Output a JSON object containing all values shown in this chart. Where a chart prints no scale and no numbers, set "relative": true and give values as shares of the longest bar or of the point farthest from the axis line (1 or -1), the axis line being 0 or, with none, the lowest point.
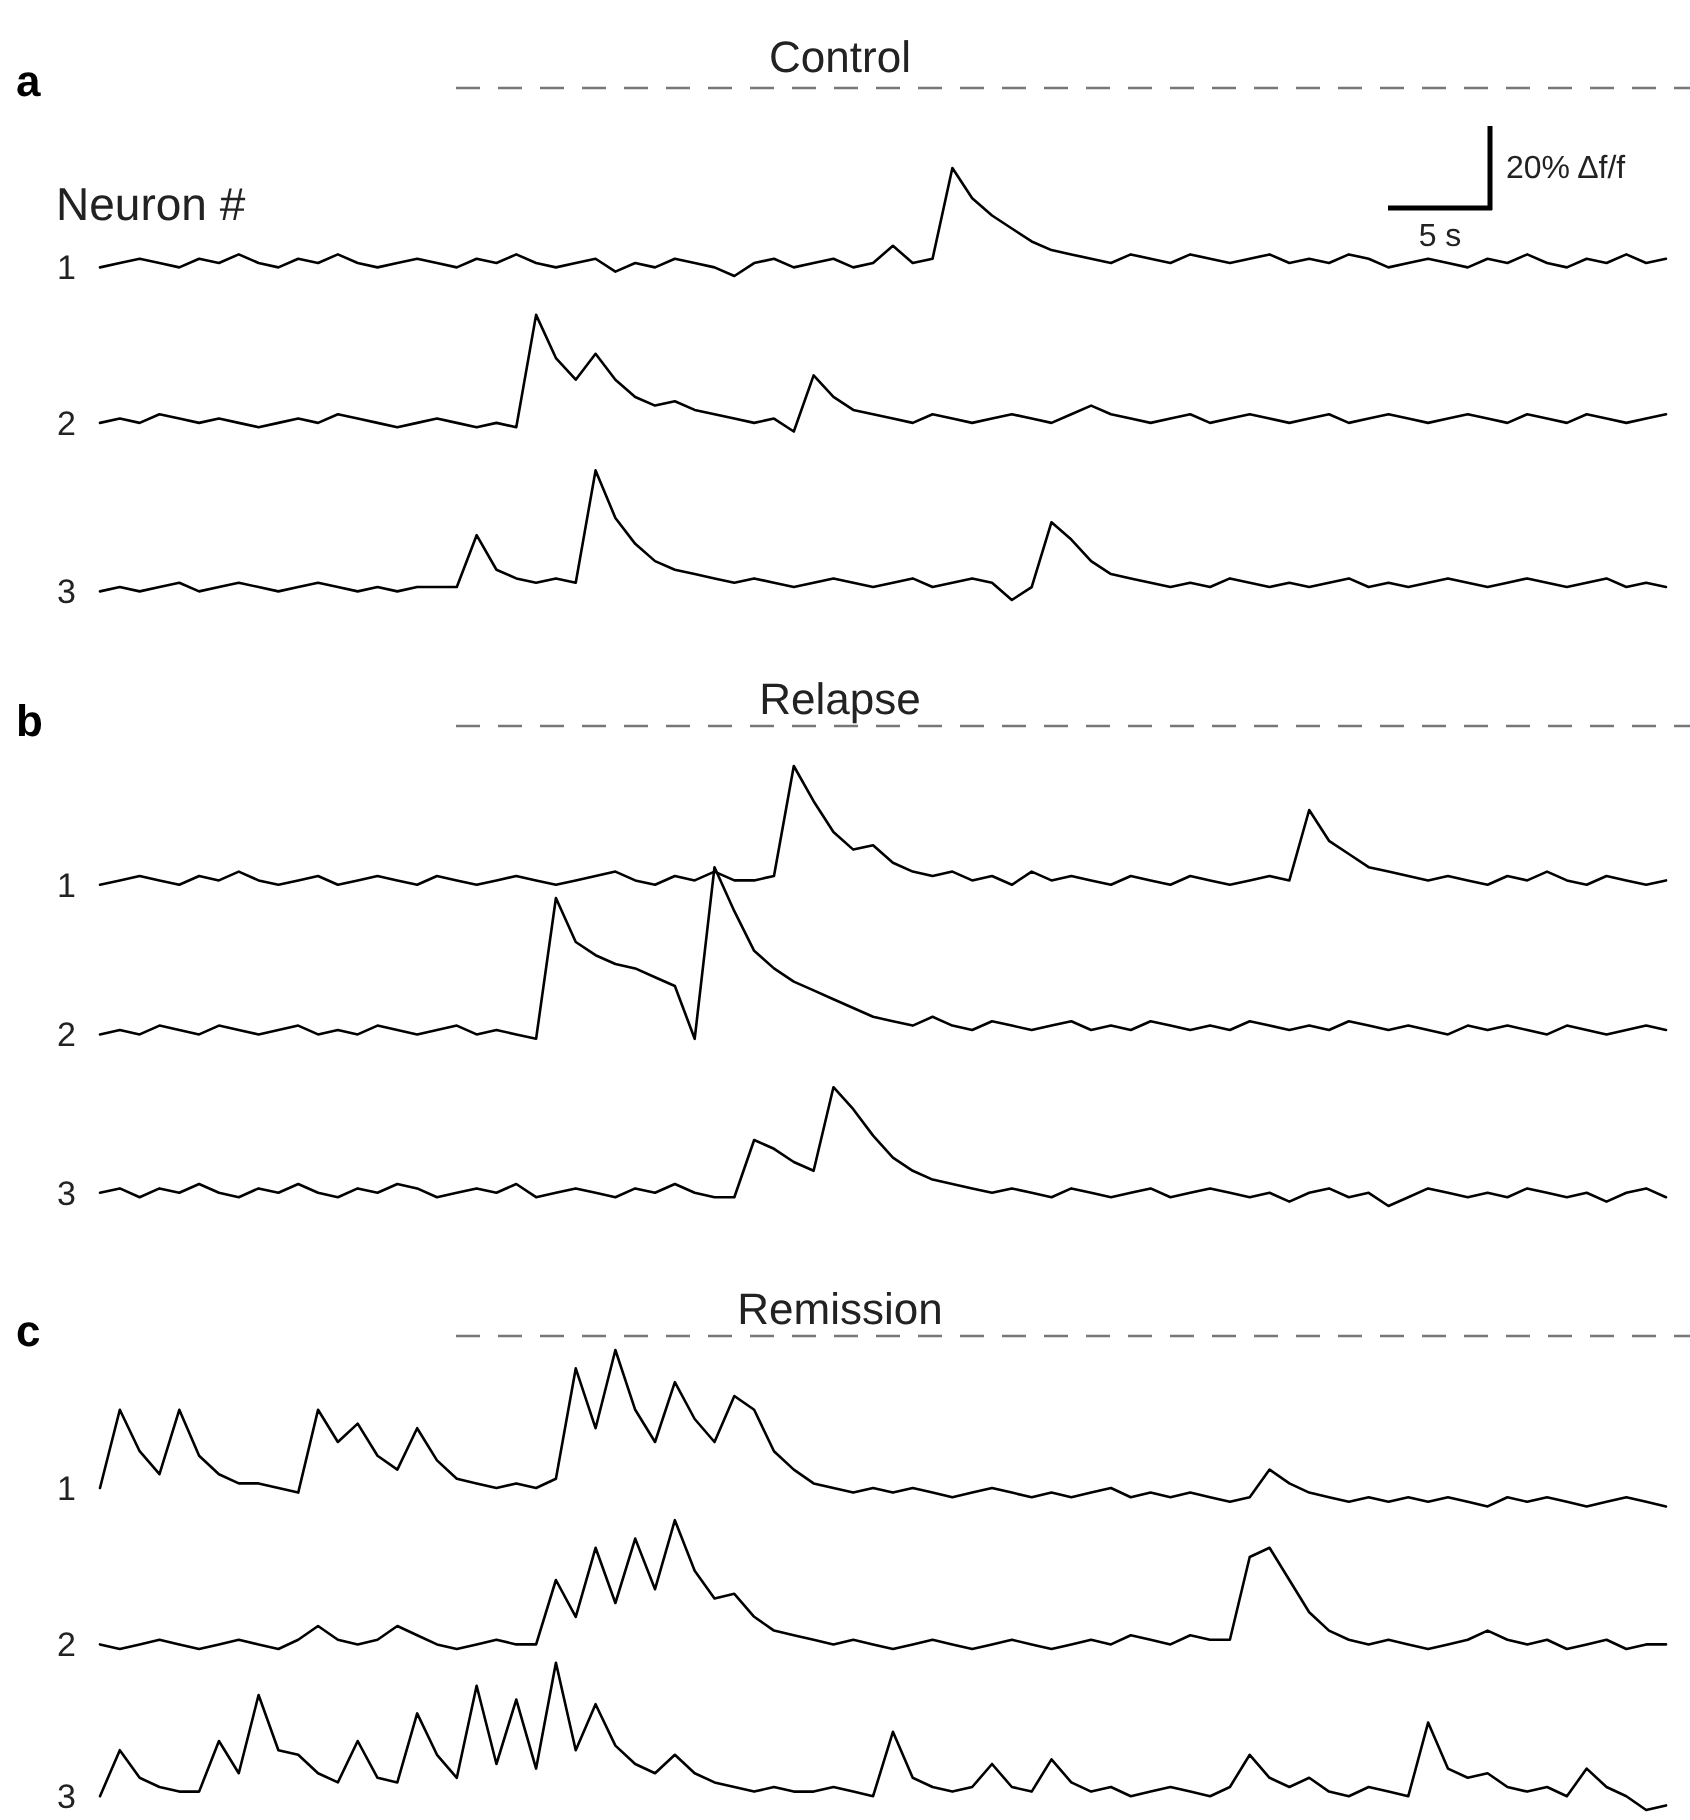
{
  "chart_data": [
    {
      "type": "line",
      "title": "Control",
      "relative": true,
      "legend": false,
      "annotations": [
        "a",
        "Neuron #",
        "20% Δf/f",
        "5 s"
      ],
      "categories": [
        null,
        null,
        null,
        null,
        null,
        null,
        null,
        null,
        null,
        null,
        null,
        null,
        null,
        null,
        null,
        null,
        null,
        null,
        null,
        null,
        null,
        null,
        null,
        null,
        null,
        null,
        null,
        null,
        null,
        null,
        null,
        null,
        null,
        null,
        null,
        null,
        null,
        null,
        null,
        null,
        null,
        null,
        null,
        null,
        null,
        null,
        null,
        null,
        null,
        null,
        null,
        null,
        null,
        null,
        null,
        null,
        null,
        null,
        null,
        null,
        null,
        null,
        null,
        null,
        null,
        null,
        null,
        null,
        null,
        null,
        null,
        null,
        null,
        null,
        null,
        null,
        null,
        null,
        null,
        null
      ],
      "series": [
        {
          "name": "1",
          "color": "#000000",
          "values": [
            0.77,
            0.78,
            0.79,
            0.78,
            0.77,
            0.79,
            0.78,
            0.8,
            0.78,
            0.77,
            0.79,
            0.78,
            0.8,
            0.78,
            0.77,
            0.78,
            0.79,
            0.78,
            0.77,
            0.79,
            0.78,
            0.8,
            0.78,
            0.77,
            0.78,
            0.79,
            0.76,
            0.78,
            0.77,
            0.79,
            0.78,
            0.77,
            0.75,
            0.78,
            0.79,
            0.77,
            0.78,
            0.79,
            0.77,
            0.78,
            0.82,
            0.78,
            0.79,
            1.0,
            0.93,
            0.89,
            0.86,
            0.83,
            0.81,
            0.8,
            0.79,
            0.78,
            0.8,
            0.79,
            0.78,
            0.8,
            0.79,
            0.78,
            0.79,
            0.8,
            0.78,
            0.79,
            0.78,
            0.8,
            0.79,
            0.77,
            0.78,
            0.79,
            0.78,
            0.77,
            0.79,
            0.78,
            0.8,
            0.78,
            0.77,
            0.79,
            0.78,
            0.8,
            0.78,
            0.79
          ]
        },
        {
          "name": "2",
          "color": "#000000",
          "values": [
            0.41,
            0.42,
            0.41,
            0.43,
            0.42,
            0.41,
            0.42,
            0.41,
            0.4,
            0.41,
            0.42,
            0.41,
            0.43,
            0.42,
            0.41,
            0.4,
            0.41,
            0.42,
            0.41,
            0.4,
            0.41,
            0.4,
            0.66,
            0.56,
            0.51,
            0.57,
            0.51,
            0.47,
            0.45,
            0.46,
            0.44,
            0.43,
            0.42,
            0.41,
            0.42,
            0.39,
            0.52,
            0.47,
            0.44,
            0.43,
            0.42,
            0.41,
            0.43,
            0.42,
            0.41,
            0.42,
            0.43,
            0.42,
            0.41,
            0.43,
            0.45,
            0.43,
            0.42,
            0.41,
            0.42,
            0.43,
            0.41,
            0.42,
            0.43,
            0.42,
            0.41,
            0.42,
            0.43,
            0.41,
            0.42,
            0.43,
            0.42,
            0.41,
            0.42,
            0.43,
            0.42,
            0.41,
            0.43,
            0.42,
            0.41,
            0.43,
            0.42,
            0.41,
            0.42,
            0.43
          ]
        },
        {
          "name": "3",
          "color": "#000000",
          "values": [
            0.02,
            0.03,
            0.02,
            0.03,
            0.04,
            0.02,
            0.03,
            0.04,
            0.03,
            0.02,
            0.03,
            0.04,
            0.03,
            0.02,
            0.03,
            0.02,
            0.03,
            0.03,
            0.03,
            0.15,
            0.07,
            0.05,
            0.04,
            0.05,
            0.04,
            0.3,
            0.19,
            0.13,
            0.09,
            0.07,
            0.06,
            0.05,
            0.04,
            0.05,
            0.04,
            0.03,
            0.04,
            0.05,
            0.04,
            0.03,
            0.04,
            0.05,
            0.03,
            0.04,
            0.05,
            0.04,
            0.0,
            0.03,
            0.18,
            0.14,
            0.09,
            0.06,
            0.05,
            0.04,
            0.03,
            0.04,
            0.03,
            0.05,
            0.04,
            0.03,
            0.04,
            0.03,
            0.04,
            0.05,
            0.03,
            0.04,
            0.03,
            0.04,
            0.05,
            0.04,
            0.03,
            0.04,
            0.05,
            0.04,
            0.03,
            0.04,
            0.05,
            0.03,
            0.04,
            0.03
          ]
        }
      ]
    },
    {
      "type": "line",
      "title": "Relapse",
      "relative": true,
      "legend": false,
      "annotations": [
        "b"
      ],
      "categories": [
        null,
        null,
        null,
        null,
        null,
        null,
        null,
        null,
        null,
        null,
        null,
        null,
        null,
        null,
        null,
        null,
        null,
        null,
        null,
        null,
        null,
        null,
        null,
        null,
        null,
        null,
        null,
        null,
        null,
        null,
        null,
        null,
        null,
        null,
        null,
        null,
        null,
        null,
        null,
        null,
        null,
        null,
        null,
        null,
        null,
        null,
        null,
        null,
        null,
        null,
        null,
        null,
        null,
        null,
        null,
        null,
        null,
        null,
        null,
        null,
        null,
        null,
        null,
        null,
        null,
        null,
        null,
        null,
        null,
        null,
        null,
        null,
        null,
        null,
        null,
        null,
        null,
        null,
        null,
        null
      ],
      "series": [
        {
          "name": "1",
          "color": "#000000",
          "values": [
            0.73,
            0.74,
            0.75,
            0.74,
            0.73,
            0.75,
            0.74,
            0.76,
            0.74,
            0.73,
            0.74,
            0.75,
            0.73,
            0.74,
            0.75,
            0.74,
            0.73,
            0.75,
            0.74,
            0.73,
            0.74,
            0.75,
            0.74,
            0.73,
            0.74,
            0.75,
            0.76,
            0.74,
            0.73,
            0.75,
            0.74,
            0.76,
            0.74,
            0.74,
            0.75,
            1.0,
            0.92,
            0.85,
            0.81,
            0.82,
            0.78,
            0.76,
            0.75,
            0.76,
            0.74,
            0.75,
            0.73,
            0.76,
            0.74,
            0.75,
            0.74,
            0.73,
            0.75,
            0.74,
            0.73,
            0.75,
            0.74,
            0.73,
            0.74,
            0.75,
            0.74,
            0.9,
            0.83,
            0.8,
            0.77,
            0.76,
            0.75,
            0.74,
            0.75,
            0.74,
            0.73,
            0.75,
            0.74,
            0.76,
            0.74,
            0.73,
            0.75,
            0.74,
            0.73,
            0.74
          ]
        },
        {
          "name": "2",
          "color": "#000000",
          "values": [
            0.39,
            0.4,
            0.39,
            0.41,
            0.4,
            0.39,
            0.41,
            0.4,
            0.39,
            0.4,
            0.41,
            0.39,
            0.4,
            0.39,
            0.41,
            0.4,
            0.39,
            0.4,
            0.41,
            0.39,
            0.4,
            0.39,
            0.38,
            0.7,
            0.6,
            0.57,
            0.55,
            0.54,
            0.52,
            0.5,
            0.38,
            0.77,
            0.67,
            0.58,
            0.54,
            0.51,
            0.49,
            0.47,
            0.45,
            0.43,
            0.42,
            0.41,
            0.43,
            0.41,
            0.4,
            0.42,
            0.41,
            0.4,
            0.41,
            0.42,
            0.4,
            0.41,
            0.4,
            0.42,
            0.41,
            0.4,
            0.41,
            0.4,
            0.42,
            0.41,
            0.4,
            0.41,
            0.4,
            0.42,
            0.41,
            0.4,
            0.41,
            0.4,
            0.39,
            0.41,
            0.4,
            0.41,
            0.4,
            0.39,
            0.41,
            0.4,
            0.39,
            0.4,
            0.41,
            0.4
          ]
        },
        {
          "name": "3",
          "color": "#000000",
          "values": [
            0.03,
            0.04,
            0.02,
            0.04,
            0.03,
            0.05,
            0.03,
            0.02,
            0.04,
            0.03,
            0.05,
            0.03,
            0.02,
            0.04,
            0.03,
            0.05,
            0.04,
            0.02,
            0.03,
            0.04,
            0.03,
            0.05,
            0.02,
            0.03,
            0.04,
            0.03,
            0.02,
            0.04,
            0.03,
            0.05,
            0.03,
            0.02,
            0.02,
            0.15,
            0.13,
            0.1,
            0.08,
            0.27,
            0.22,
            0.16,
            0.11,
            0.08,
            0.06,
            0.05,
            0.04,
            0.03,
            0.04,
            0.03,
            0.02,
            0.04,
            0.03,
            0.02,
            0.03,
            0.04,
            0.02,
            0.03,
            0.04,
            0.03,
            0.02,
            0.03,
            0.01,
            0.03,
            0.04,
            0.02,
            0.03,
            0.0,
            0.02,
            0.04,
            0.03,
            0.02,
            0.03,
            0.02,
            0.04,
            0.03,
            0.02,
            0.03,
            0.01,
            0.03,
            0.04,
            0.02
          ]
        }
      ]
    },
    {
      "type": "line",
      "title": "Remission",
      "relative": true,
      "legend": false,
      "annotations": [
        "c"
      ],
      "categories": [
        null,
        null,
        null,
        null,
        null,
        null,
        null,
        null,
        null,
        null,
        null,
        null,
        null,
        null,
        null,
        null,
        null,
        null,
        null,
        null,
        null,
        null,
        null,
        null,
        null,
        null,
        null,
        null,
        null,
        null,
        null,
        null,
        null,
        null,
        null,
        null,
        null,
        null,
        null,
        null,
        null,
        null,
        null,
        null,
        null,
        null,
        null,
        null,
        null,
        null,
        null,
        null,
        null,
        null,
        null,
        null,
        null,
        null,
        null,
        null,
        null,
        null,
        null,
        null,
        null,
        null,
        null,
        null,
        null,
        null,
        null,
        null,
        null,
        null,
        null,
        null,
        null,
        null,
        null,
        null
      ],
      "series": [
        {
          "name": "1",
          "color": "#000000",
          "values": [
            0.7,
            0.87,
            0.78,
            0.73,
            0.87,
            0.77,
            0.73,
            0.71,
            0.71,
            0.7,
            0.69,
            0.87,
            0.8,
            0.84,
            0.77,
            0.74,
            0.83,
            0.76,
            0.72,
            0.71,
            0.7,
            0.71,
            0.7,
            0.72,
            0.96,
            0.83,
            1.0,
            0.87,
            0.8,
            0.93,
            0.85,
            0.8,
            0.9,
            0.87,
            0.78,
            0.74,
            0.71,
            0.7,
            0.69,
            0.7,
            0.69,
            0.7,
            0.69,
            0.68,
            0.69,
            0.7,
            0.69,
            0.68,
            0.69,
            0.68,
            0.69,
            0.7,
            0.68,
            0.69,
            0.68,
            0.69,
            0.68,
            0.67,
            0.68,
            0.74,
            0.71,
            0.69,
            0.68,
            0.67,
            0.68,
            0.67,
            0.68,
            0.67,
            0.68,
            0.67,
            0.66,
            0.68,
            0.67,
            0.68,
            0.67,
            0.66,
            0.67,
            0.68,
            0.67,
            0.66
          ]
        },
        {
          "name": "2",
          "color": "#000000",
          "values": [
            0.36,
            0.35,
            0.36,
            0.37,
            0.36,
            0.35,
            0.36,
            0.37,
            0.36,
            0.35,
            0.37,
            0.4,
            0.37,
            0.36,
            0.37,
            0.4,
            0.38,
            0.36,
            0.35,
            0.36,
            0.37,
            0.36,
            0.36,
            0.5,
            0.42,
            0.57,
            0.45,
            0.59,
            0.48,
            0.63,
            0.52,
            0.46,
            0.47,
            0.42,
            0.39,
            0.38,
            0.37,
            0.36,
            0.37,
            0.36,
            0.35,
            0.36,
            0.37,
            0.36,
            0.35,
            0.36,
            0.37,
            0.36,
            0.35,
            0.36,
            0.37,
            0.36,
            0.38,
            0.37,
            0.36,
            0.38,
            0.37,
            0.37,
            0.55,
            0.57,
            0.5,
            0.43,
            0.39,
            0.37,
            0.36,
            0.37,
            0.36,
            0.35,
            0.36,
            0.37,
            0.39,
            0.37,
            0.36,
            0.37,
            0.35,
            0.36,
            0.37,
            0.35,
            0.36,
            0.36
          ]
        },
        {
          "name": "3",
          "color": "#000000",
          "values": [
            0.03,
            0.13,
            0.07,
            0.05,
            0.04,
            0.04,
            0.15,
            0.08,
            0.25,
            0.13,
            0.12,
            0.08,
            0.06,
            0.15,
            0.07,
            0.06,
            0.21,
            0.12,
            0.07,
            0.27,
            0.1,
            0.24,
            0.09,
            0.32,
            0.13,
            0.23,
            0.14,
            0.1,
            0.08,
            0.12,
            0.08,
            0.06,
            0.05,
            0.04,
            0.05,
            0.04,
            0.04,
            0.05,
            0.04,
            0.03,
            0.17,
            0.07,
            0.05,
            0.04,
            0.05,
            0.1,
            0.05,
            0.04,
            0.11,
            0.06,
            0.04,
            0.05,
            0.03,
            0.04,
            0.05,
            0.04,
            0.03,
            0.05,
            0.12,
            0.07,
            0.05,
            0.07,
            0.04,
            0.03,
            0.05,
            0.04,
            0.03,
            0.19,
            0.09,
            0.07,
            0.08,
            0.05,
            0.04,
            0.05,
            0.03,
            0.09,
            0.05,
            0.03,
            0.0,
            0.01
          ]
        }
      ]
    }
  ]
}
